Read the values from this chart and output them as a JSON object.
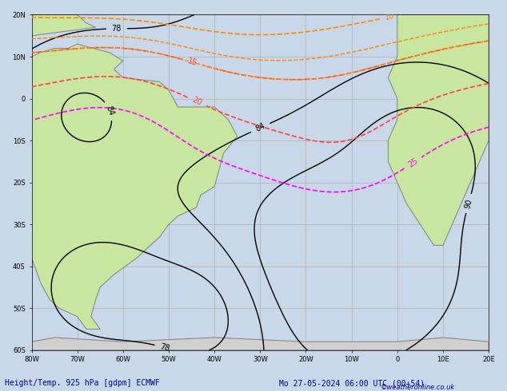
{
  "title_left": "Height/Temp. 925 hPa [gdpm] ECMWF",
  "title_right": "Mo 27-05-2024 06:00 UTC (00+54)",
  "credit": "©weatheronline.co.uk",
  "background_ocean": "#d0e8f8",
  "background_land_green": "#c8e6a0",
  "background_land_grey": "#d0d0d0",
  "grid_color": "#b0b0b0",
  "text_color_bottom": "#0000aa",
  "figsize": [
    6.34,
    4.9
  ],
  "dpi": 100
}
